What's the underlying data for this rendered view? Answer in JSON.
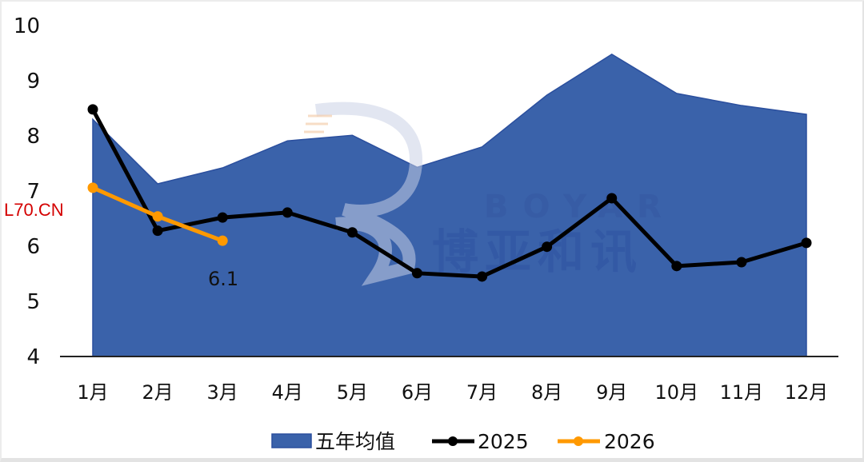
{
  "chart_data": {
    "type": "line",
    "title": "",
    "xlabel": "",
    "ylabel": "",
    "ylim": [
      4,
      10
    ],
    "yticks": [
      4,
      5,
      6,
      7,
      8,
      9,
      10
    ],
    "grid": false,
    "legend_position": "bottom",
    "categories": [
      "1月",
      "2月",
      "3月",
      "4月",
      "5月",
      "6月",
      "7月",
      "8月",
      "9月",
      "10月",
      "11月",
      "12月"
    ],
    "series": [
      {
        "name": "五年均值",
        "type": "area",
        "color": "#3A62AA",
        "edge_color": "#2B4F9E",
        "values": [
          8.3,
          7.13,
          7.42,
          7.91,
          8.01,
          7.43,
          7.8,
          8.74,
          9.48,
          8.77,
          8.55,
          8.39
        ]
      },
      {
        "name": "2025",
        "type": "line",
        "color": "#000000",
        "values": [
          8.48,
          6.28,
          6.52,
          6.61,
          6.25,
          5.51,
          5.45,
          5.99,
          6.87,
          5.64,
          5.71,
          6.06
        ]
      },
      {
        "name": "2026",
        "type": "line",
        "color": "#FF9900",
        "values": [
          7.06,
          6.54,
          6.1
        ]
      }
    ],
    "annotations": [
      {
        "text": "6.1",
        "series": "2026",
        "category": "3月"
      }
    ]
  },
  "labels": {
    "source_tag": "L70.CN",
    "last_value_label": "6.1",
    "legend": [
      "五年均值",
      "2025",
      "2026"
    ]
  },
  "watermark": {
    "latin": "BOYAR",
    "chinese": "博亚和讯"
  },
  "colors": {
    "area": "#3A62AA",
    "area_edge": "#2B4F9E",
    "line_2025": "#000000",
    "line_2026": "#FF9900",
    "source_tag": "#D40000",
    "axis": "#222222"
  }
}
